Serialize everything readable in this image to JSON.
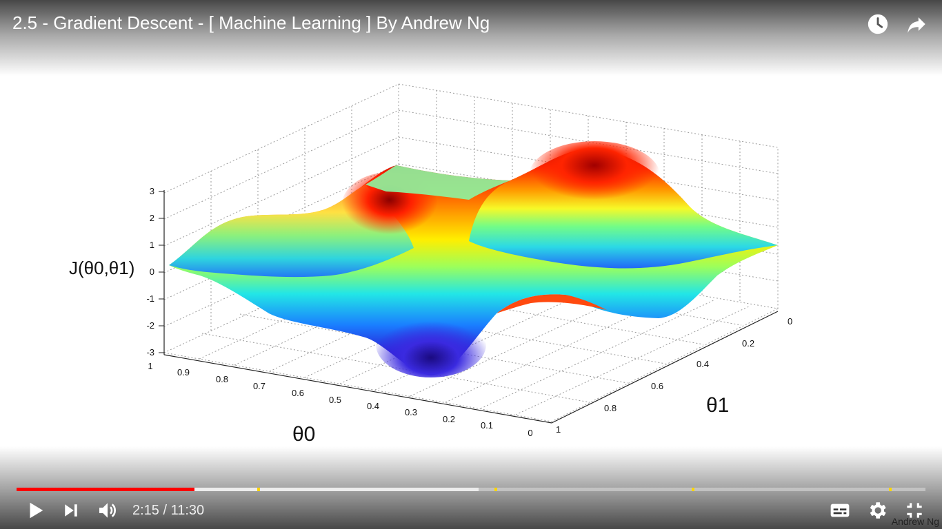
{
  "player": {
    "title": "2.5 - Gradient Descent - [ Machine Learning ] By Andrew Ng",
    "current_time": "2:15",
    "duration": "11:30",
    "time_display": "2:15 / 11:30",
    "progress_fraction": 0.196,
    "buffered_fraction": 0.508,
    "chapter_markers": [
      0.265,
      0.526,
      0.743,
      0.96
    ]
  },
  "icons": {
    "watch_later": "clock-icon",
    "share": "share-arrow-icon",
    "play": "play-icon",
    "next": "skip-next-icon",
    "volume": "volume-icon",
    "subtitles": "subtitles-icon",
    "settings": "gear-icon",
    "exit_fullscreen": "exit-fullscreen-icon"
  },
  "watermark": "Andrew Ng",
  "chart_data": {
    "type": "surface",
    "zlabel": "J(θ0,θ1)",
    "xlabel": "θ0",
    "ylabel": "θ1",
    "z_ticks": [
      "3",
      "2",
      "1",
      "0",
      "-1",
      "-2",
      "-3"
    ],
    "x_ticks": [
      "1",
      "0.9",
      "0.8",
      "0.7",
      "0.6",
      "0.5",
      "0.4",
      "0.3",
      "0.2",
      "0.1",
      "0"
    ],
    "y_ticks": [
      "0",
      "0.2",
      "0.4",
      "0.6",
      "0.8",
      "1"
    ],
    "zlim": [
      -3,
      3
    ],
    "xlim": [
      0,
      1
    ],
    "ylim": [
      0,
      1
    ],
    "colormap": "jet",
    "grid": true
  }
}
